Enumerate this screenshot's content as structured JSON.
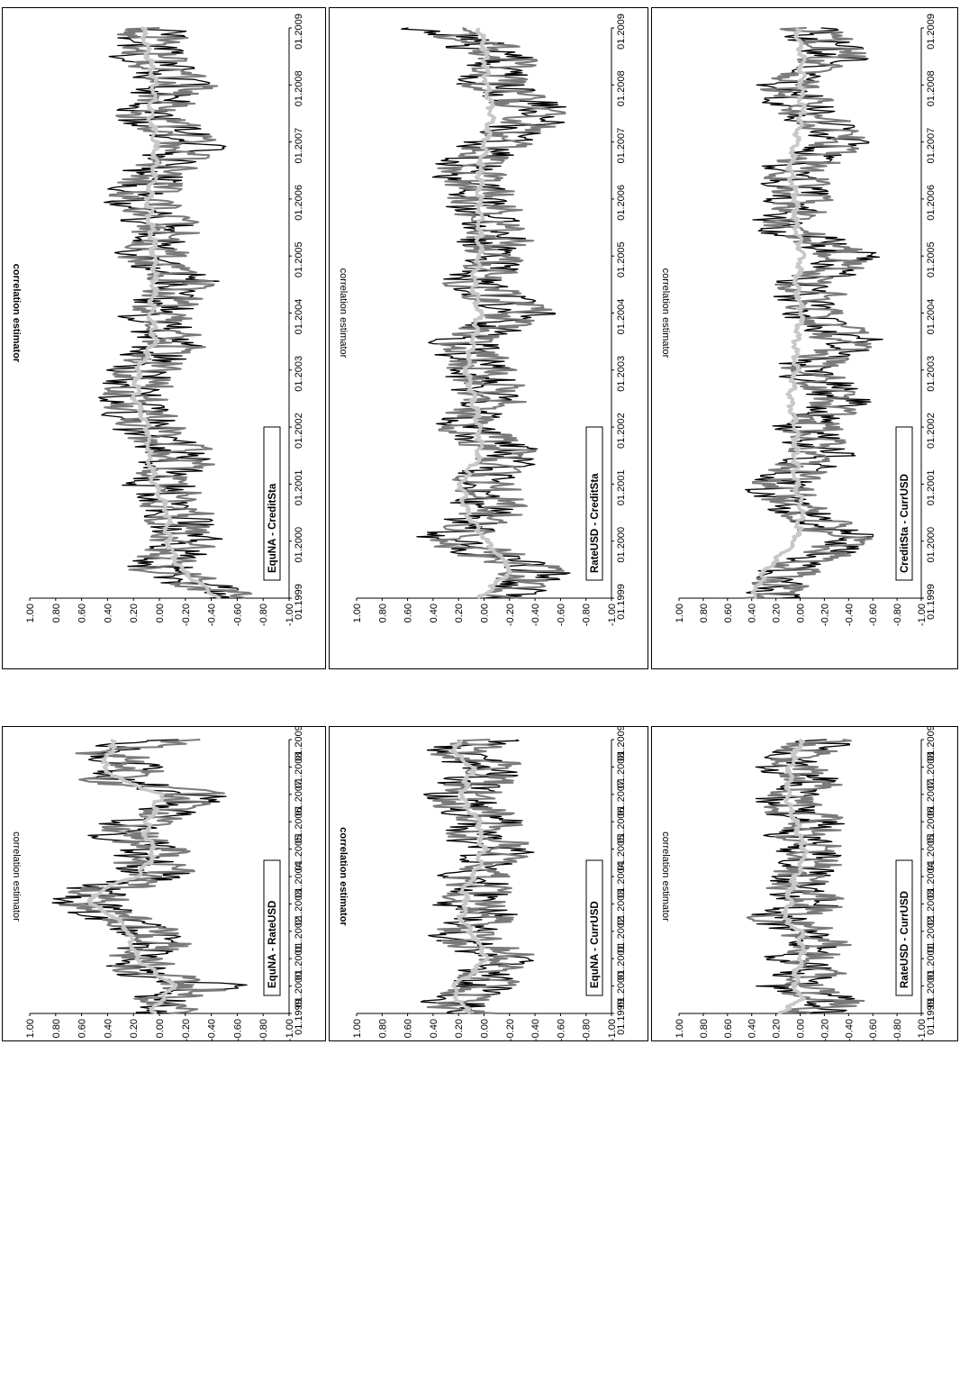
{
  "chart_data": [
    {
      "type": "line",
      "title": "EquNA - RateUSD",
      "ylabel": "correlation estimator",
      "ylabel_bold": false,
      "ylim": [
        -1.0,
        1.0
      ],
      "y_ticks": [
        "1.00",
        "0.80",
        "0.60",
        "0.40",
        "0.20",
        "0.00",
        "-0.20",
        "-0.40",
        "-0.60",
        "-0.80",
        "-1.00"
      ],
      "x_ticks": [
        "01.1999",
        "01.2000",
        "01.2001",
        "01.2002",
        "01.2003",
        "01.2004",
        "01.2005",
        "01.2006",
        "01.2007",
        "01.2008",
        "01.2009"
      ],
      "x": [
        1999.0,
        1999.5,
        2000.0,
        2000.5,
        2001.0,
        2001.5,
        2002.0,
        2002.5,
        2003.0,
        2003.5,
        2004.0,
        2004.5,
        2005.0,
        2005.5,
        2006.0,
        2006.5,
        2007.0,
        2007.5,
        2008.0,
        2008.5,
        2009.0
      ],
      "series": [
        {
          "values": [
            0.05,
            0.18,
            -0.3,
            0.3,
            0.35,
            0.2,
            0.28,
            0.5,
            0.72,
            0.65,
            0.15,
            0.3,
            0.18,
            0.5,
            0.3,
            0.0,
            -0.2,
            0.55,
            0.3,
            0.65,
            0.1
          ],
          "color": "#000000"
        },
        {
          "values": [
            0.02,
            0.12,
            -0.2,
            0.25,
            0.3,
            0.15,
            0.22,
            0.45,
            0.68,
            0.55,
            0.1,
            0.22,
            0.12,
            0.42,
            0.25,
            -0.05,
            -0.15,
            0.5,
            0.25,
            0.58,
            0.05
          ],
          "color": "#7a7a7a"
        },
        {
          "values": [
            0.08,
            0.0,
            -0.1,
            0.05,
            0.18,
            0.22,
            0.25,
            0.35,
            0.55,
            0.48,
            0.2,
            0.1,
            0.05,
            0.12,
            0.1,
            0.05,
            0.0,
            0.3,
            0.45,
            0.4,
            0.35
          ],
          "color": "#c8c8c8"
        }
      ]
    },
    {
      "type": "line",
      "title": "EquNA - CurrUSD",
      "ylabel": "correlation estimator",
      "ylabel_bold": true,
      "ylim": [
        -1.0,
        1.0
      ],
      "y_ticks": [
        "1.00",
        "0.80",
        "0.60",
        "0.40",
        "0.20",
        "0.00",
        "-0.20",
        "-0.40",
        "-0.60",
        "-0.80",
        "-1.00"
      ],
      "x_ticks": [
        "01.1999",
        "01.2000",
        "01.2001",
        "01.2002",
        "01.2003",
        "01.2004",
        "01.2005",
        "01.2006",
        "01.2007",
        "01.2008",
        "01.2009"
      ],
      "x": [
        1999.0,
        1999.5,
        2000.0,
        2000.5,
        2001.0,
        2001.5,
        2002.0,
        2002.5,
        2003.0,
        2003.5,
        2004.0,
        2004.5,
        2005.0,
        2005.5,
        2006.0,
        2006.5,
        2007.0,
        2007.5,
        2008.0,
        2008.5,
        2009.0
      ],
      "series": [
        {
          "values": [
            0.3,
            0.45,
            0.1,
            0.2,
            -0.1,
            0.25,
            0.35,
            0.1,
            0.3,
            0.2,
            0.25,
            0.1,
            0.0,
            0.25,
            0.1,
            0.3,
            0.35,
            0.2,
            0.05,
            0.45,
            0.1
          ],
          "color": "#000000"
        },
        {
          "values": [
            0.25,
            0.38,
            0.05,
            0.15,
            -0.05,
            0.2,
            0.3,
            0.05,
            0.25,
            0.15,
            0.2,
            0.05,
            -0.05,
            0.2,
            0.05,
            0.25,
            0.3,
            0.15,
            0.0,
            0.4,
            0.05
          ],
          "color": "#7a7a7a"
        },
        {
          "values": [
            0.12,
            0.22,
            0.25,
            0.1,
            0.0,
            0.05,
            0.12,
            0.2,
            0.15,
            0.18,
            0.1,
            0.05,
            0.02,
            0.05,
            0.05,
            0.15,
            0.18,
            0.15,
            0.1,
            0.25,
            0.2
          ],
          "color": "#c8c8c8"
        }
      ]
    },
    {
      "type": "line",
      "title": "RateUSD - CurrUSD",
      "ylabel": "correlation estimator",
      "ylabel_bold": false,
      "ylim": [
        -1.0,
        1.0
      ],
      "y_ticks": [
        "1.00",
        "0.80",
        "0.60",
        "0.40",
        "0.20",
        "0.00",
        "-0.20",
        "-0.40",
        "-0.60",
        "-0.80",
        "-1.00"
      ],
      "x_ticks": [
        "01.1999",
        "01.2000",
        "01.2001",
        "01.2002",
        "01.2003",
        "01.2004",
        "01.2005",
        "01.2006",
        "01.2007",
        "01.2008",
        "01.2009"
      ],
      "x": [
        1999.0,
        1999.5,
        2000.0,
        2000.5,
        2001.0,
        2001.5,
        2002.0,
        2002.5,
        2003.0,
        2003.5,
        2004.0,
        2004.5,
        2005.0,
        2005.5,
        2006.0,
        2006.5,
        2007.0,
        2007.5,
        2008.0,
        2008.5,
        2009.0
      ],
      "series": [
        {
          "values": [
            0.1,
            -0.2,
            0.25,
            0.05,
            0.2,
            0.0,
            0.15,
            0.35,
            0.05,
            0.2,
            0.15,
            0.1,
            0.05,
            0.2,
            0.0,
            0.3,
            0.25,
            0.05,
            0.3,
            0.15,
            -0.1
          ],
          "color": "#000000"
        },
        {
          "values": [
            0.05,
            -0.15,
            0.2,
            0.0,
            0.15,
            -0.05,
            0.1,
            0.3,
            0.0,
            0.15,
            0.1,
            0.05,
            0.0,
            0.15,
            -0.05,
            0.25,
            0.2,
            0.0,
            0.25,
            0.1,
            -0.05
          ],
          "color": "#7a7a7a"
        },
        {
          "values": [
            0.2,
            0.0,
            0.05,
            0.05,
            0.0,
            0.0,
            0.02,
            0.15,
            0.1,
            0.1,
            0.05,
            0.0,
            -0.02,
            0.02,
            0.05,
            0.1,
            0.12,
            0.1,
            0.1,
            0.05,
            0.0
          ],
          "color": "#c8c8c8"
        }
      ]
    },
    {
      "type": "line",
      "title": "EquNA - CreditSta",
      "ylabel": "correlation estimator",
      "ylabel_bold": true,
      "ylim": [
        -1.0,
        1.0
      ],
      "y_ticks": [
        "1.00",
        "0.80",
        "0.60",
        "0.40",
        "0.20",
        "0.00",
        "-0.20",
        "-0.40",
        "-0.60",
        "-0.80",
        "-1.00"
      ],
      "x_ticks": [
        "01.1999",
        "01.2000",
        "01.2001",
        "01.2002",
        "01.2003",
        "01.2004",
        "01.2005",
        "01.2006",
        "01.2007",
        "01.2008",
        "01.2009"
      ],
      "x": [
        1999.0,
        1999.5,
        2000.0,
        2000.5,
        2001.0,
        2001.5,
        2002.0,
        2002.5,
        2003.0,
        2003.5,
        2004.0,
        2004.5,
        2005.0,
        2005.5,
        2006.0,
        2006.5,
        2007.0,
        2007.5,
        2008.0,
        2008.5,
        2009.0
      ],
      "series": [
        {
          "values": [
            -0.5,
            0.15,
            -0.1,
            0.05,
            0.15,
            0.0,
            0.25,
            0.4,
            0.3,
            0.05,
            0.2,
            -0.1,
            0.25,
            0.1,
            0.35,
            0.15,
            -0.15,
            0.3,
            0.0,
            0.25,
            0.15
          ],
          "color": "#000000"
        },
        {
          "values": [
            -0.45,
            0.1,
            -0.05,
            0.0,
            0.1,
            -0.05,
            0.2,
            0.35,
            0.25,
            0.0,
            0.15,
            -0.05,
            0.2,
            0.05,
            0.3,
            0.1,
            -0.1,
            0.25,
            -0.05,
            0.2,
            0.2
          ],
          "color": "#7a7a7a"
        },
        {
          "values": [
            -0.45,
            -0.15,
            -0.05,
            -0.05,
            0.05,
            0.1,
            0.1,
            0.2,
            0.18,
            0.05,
            0.08,
            0.05,
            0.05,
            0.08,
            0.1,
            0.05,
            0.05,
            0.08,
            0.05,
            0.1,
            0.15
          ],
          "color": "#c8c8c8"
        }
      ]
    },
    {
      "type": "line",
      "title": "RateUSD - CreditSta",
      "ylabel": "correlation estimator",
      "ylabel_bold": false,
      "ylim": [
        -1.0,
        1.0
      ],
      "y_ticks": [
        "1.00",
        "0.80",
        "0.60",
        "0.40",
        "0.20",
        "0.00",
        "-0.20",
        "-0.40",
        "-0.60",
        "-0.80",
        "-1.00"
      ],
      "x_ticks": [
        "01.1999",
        "01.2000",
        "01.2001",
        "01.2002",
        "01.2003",
        "01.2004",
        "01.2005",
        "01.2006",
        "01.2007",
        "01.2008",
        "01.2009"
      ],
      "x": [
        1999.0,
        1999.5,
        2000.0,
        2000.5,
        2001.0,
        2001.5,
        2002.0,
        2002.5,
        2003.0,
        2003.5,
        2004.0,
        2004.5,
        2005.0,
        2005.5,
        2006.0,
        2006.5,
        2007.0,
        2007.5,
        2008.0,
        2008.5,
        2009.0
      ],
      "series": [
        {
          "values": [
            0.0,
            -0.3,
            0.45,
            0.1,
            0.2,
            -0.15,
            0.35,
            0.1,
            0.2,
            0.3,
            -0.2,
            0.25,
            0.05,
            0.1,
            0.2,
            0.3,
            0.05,
            -0.35,
            0.1,
            0.0,
            0.55
          ],
          "color": "#000000"
        },
        {
          "values": [
            0.05,
            -0.25,
            0.4,
            0.05,
            0.15,
            -0.1,
            0.3,
            0.05,
            0.15,
            0.25,
            -0.15,
            0.2,
            0.0,
            0.05,
            0.15,
            0.25,
            0.0,
            -0.3,
            0.05,
            -0.05,
            0.5
          ],
          "color": "#7a7a7a"
        },
        {
          "values": [
            0.05,
            -0.2,
            0.0,
            0.15,
            0.2,
            0.05,
            0.05,
            0.1,
            0.15,
            0.1,
            0.05,
            0.1,
            0.05,
            0.05,
            0.05,
            0.05,
            0.0,
            -0.05,
            0.0,
            0.0,
            0.05
          ],
          "color": "#c8c8c8"
        }
      ]
    },
    {
      "type": "line",
      "title": "CreditSta - CurrUSD",
      "ylabel": "correlation estimator",
      "ylabel_bold": false,
      "ylim": [
        -1.0,
        1.0
      ],
      "y_ticks": [
        "1.00",
        "0.80",
        "0.60",
        "0.40",
        "0.20",
        "0.00",
        "-0.20",
        "-0.40",
        "-0.60",
        "-0.80",
        "-1.00"
      ],
      "x_ticks": [
        "01.1999",
        "01.2000",
        "01.2001",
        "01.2002",
        "01.2003",
        "01.2004",
        "01.2005",
        "01.2006",
        "01.2007",
        "01.2008",
        "01.2009"
      ],
      "x": [
        1999.0,
        1999.5,
        2000.0,
        2000.5,
        2001.0,
        2001.5,
        2002.0,
        2002.5,
        2003.0,
        2003.5,
        2004.0,
        2004.5,
        2005.0,
        2005.5,
        2006.0,
        2006.5,
        2007.0,
        2007.5,
        2008.0,
        2008.5,
        2009.0
      ],
      "series": [
        {
          "values": [
            0.4,
            0.25,
            -0.3,
            0.15,
            0.35,
            -0.05,
            0.1,
            -0.25,
            0.15,
            -0.3,
            0.05,
            0.1,
            -0.3,
            0.3,
            0.15,
            0.25,
            -0.25,
            0.1,
            0.3,
            -0.2,
            0.1
          ],
          "color": "#000000"
        },
        {
          "values": [
            0.35,
            0.2,
            -0.25,
            0.1,
            0.3,
            0.0,
            0.05,
            -0.2,
            0.1,
            -0.25,
            0.0,
            0.05,
            -0.25,
            0.25,
            0.1,
            0.2,
            -0.2,
            0.05,
            0.25,
            -0.15,
            0.05
          ],
          "color": "#7a7a7a"
        },
        {
          "values": [
            0.4,
            0.3,
            0.05,
            0.0,
            0.05,
            0.05,
            0.05,
            0.1,
            0.05,
            0.05,
            0.0,
            0.05,
            0.0,
            0.05,
            0.05,
            0.1,
            0.05,
            0.0,
            0.0,
            0.0,
            0.05
          ],
          "color": "#c8c8c8"
        }
      ]
    }
  ]
}
